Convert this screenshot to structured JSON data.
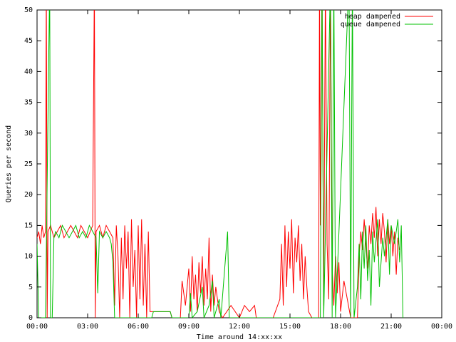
{
  "chart_data": {
    "type": "line",
    "x_label": "Time around 14:xx:xx",
    "y_label": "Queries per second",
    "xlim": [
      0,
      24
    ],
    "xticks": [
      {
        "value": 0,
        "label": "00:00"
      },
      {
        "value": 3,
        "label": "03:00"
      },
      {
        "value": 6,
        "label": "06:00"
      },
      {
        "value": 9,
        "label": "09:00"
      },
      {
        "value": 12,
        "label": "12:00"
      },
      {
        "value": 15,
        "label": "15:00"
      },
      {
        "value": 18,
        "label": "18:00"
      },
      {
        "value": 21,
        "label": "21:00"
      },
      {
        "value": 24,
        "label": "00:00"
      }
    ],
    "ylim": [
      0,
      50
    ],
    "yticks": [
      0,
      5,
      10,
      15,
      20,
      25,
      30,
      35,
      40,
      45,
      50
    ],
    "legend": "top-right",
    "series": [
      {
        "name": "heap dampened",
        "color": "#ff0000",
        "x": [
          0.0,
          0.1,
          0.2,
          0.3,
          0.4,
          0.5,
          0.55,
          0.6,
          0.65,
          0.8,
          1.0,
          1.2,
          1.4,
          1.6,
          1.8,
          2.0,
          2.2,
          2.4,
          2.6,
          2.8,
          3.0,
          3.3,
          3.4,
          3.45,
          3.5,
          3.7,
          3.9,
          4.1,
          4.3,
          4.5,
          4.6,
          4.7,
          4.8,
          4.9,
          5.0,
          5.1,
          5.2,
          5.3,
          5.4,
          5.5,
          5.6,
          5.7,
          5.8,
          5.9,
          6.0,
          6.1,
          6.2,
          6.3,
          6.4,
          6.5,
          6.6,
          6.7,
          6.8,
          7.2,
          7.5,
          7.9,
          8.0,
          8.5,
          8.6,
          8.8,
          9.0,
          9.1,
          9.2,
          9.3,
          9.4,
          9.5,
          9.6,
          9.7,
          9.8,
          9.9,
          10.0,
          10.1,
          10.2,
          10.3,
          10.4,
          10.5,
          10.6,
          10.8,
          11.0,
          11.5,
          12.0,
          12.3,
          12.6,
          12.9,
          13.0,
          14.0,
          14.4,
          14.5,
          14.6,
          14.7,
          14.8,
          14.9,
          15.0,
          15.1,
          15.2,
          15.3,
          15.4,
          15.5,
          15.6,
          15.7,
          15.8,
          15.9,
          16.0,
          16.1,
          16.3,
          16.7,
          16.75,
          16.8,
          16.9,
          17.0,
          17.1,
          17.2,
          17.3,
          17.4,
          17.5,
          17.6,
          17.7,
          17.8,
          17.9,
          18.0,
          18.2,
          18.4,
          18.6,
          19.0,
          19.1,
          19.2,
          19.3,
          19.4,
          19.5,
          19.6,
          19.7,
          19.8,
          19.9,
          20.0,
          20.1,
          20.2,
          20.3,
          20.4,
          20.5,
          20.6,
          20.7,
          20.8,
          20.9,
          21.0,
          21.1,
          21.2,
          21.3,
          21.4,
          21.5
        ],
        "values": [
          13,
          14,
          12,
          15,
          13,
          14,
          55,
          0,
          14,
          15,
          13,
          14,
          15,
          13,
          14,
          15,
          14,
          13,
          15,
          14,
          13,
          15,
          55,
          0,
          14,
          15,
          13,
          15,
          14,
          13,
          2,
          15,
          10,
          0,
          13,
          3,
          15,
          8,
          14,
          0,
          16,
          5,
          11,
          0,
          15,
          3,
          16,
          2,
          12,
          0,
          14,
          1,
          1,
          1,
          1,
          1,
          0,
          0,
          6,
          2,
          8,
          1,
          10,
          3,
          7,
          1,
          9,
          4,
          10,
          2,
          8,
          3,
          13,
          1,
          7,
          2,
          5,
          1,
          0,
          2,
          0,
          2,
          1,
          2,
          0,
          0,
          3,
          12,
          2,
          15,
          5,
          14,
          8,
          16,
          4,
          13,
          9,
          15,
          6,
          12,
          3,
          10,
          5,
          1,
          0,
          0,
          55,
          15,
          55,
          2,
          55,
          12,
          3,
          55,
          8,
          2,
          10,
          4,
          9,
          1,
          6,
          3,
          0,
          0,
          10,
          14,
          11,
          16,
          12,
          8,
          15,
          12,
          17,
          13,
          18,
          10,
          16,
          12,
          17,
          14,
          9,
          16,
          12,
          15,
          10,
          14,
          7,
          13,
          11
        ]
      },
      {
        "name": "queue dampened",
        "color": "#00c000",
        "x": [
          0.0,
          0.1,
          0.2,
          0.5,
          0.75,
          0.8,
          0.9,
          1.0,
          1.1,
          1.3,
          1.5,
          1.7,
          1.9,
          2.1,
          2.3,
          2.5,
          2.7,
          2.9,
          3.1,
          3.3,
          3.5,
          3.6,
          3.7,
          3.9,
          4.1,
          4.3,
          4.4,
          4.5,
          4.6,
          5.0,
          6.0,
          6.8,
          6.9,
          7.5,
          7.9,
          8.0,
          9.0,
          9.1,
          9.2,
          9.5,
          9.8,
          9.9,
          10.2,
          10.4,
          10.5,
          10.8,
          10.9,
          11.3,
          11.4,
          12.0,
          16.8,
          16.9,
          17.0,
          17.4,
          17.5,
          17.6,
          17.7,
          18.5,
          18.6,
          18.7,
          18.8,
          19.0,
          19.1,
          19.2,
          19.3,
          19.4,
          19.5,
          19.6,
          19.7,
          19.8,
          19.9,
          20.0,
          20.2,
          20.3,
          20.5,
          20.6,
          20.8,
          20.9,
          21.0,
          21.2,
          21.4,
          21.5,
          21.6,
          21.7
        ],
        "values": [
          12,
          0,
          0,
          0,
          55,
          0,
          0,
          13,
          14,
          13,
          15,
          14,
          13,
          14,
          15,
          13,
          14,
          13,
          15,
          14,
          13,
          4,
          14,
          13,
          14,
          13,
          12,
          9,
          0,
          0,
          0,
          0,
          1,
          1,
          1,
          0,
          0,
          4,
          0,
          1,
          5,
          0,
          2,
          6,
          0,
          3,
          0,
          14,
          0,
          0,
          0,
          55,
          0,
          55,
          0,
          55,
          0,
          55,
          0,
          55,
          0,
          5,
          12,
          3,
          14,
          8,
          15,
          6,
          11,
          2,
          14,
          9,
          16,
          5,
          13,
          10,
          16,
          7,
          15,
          12,
          16,
          9,
          15,
          0
        ]
      }
    ]
  }
}
